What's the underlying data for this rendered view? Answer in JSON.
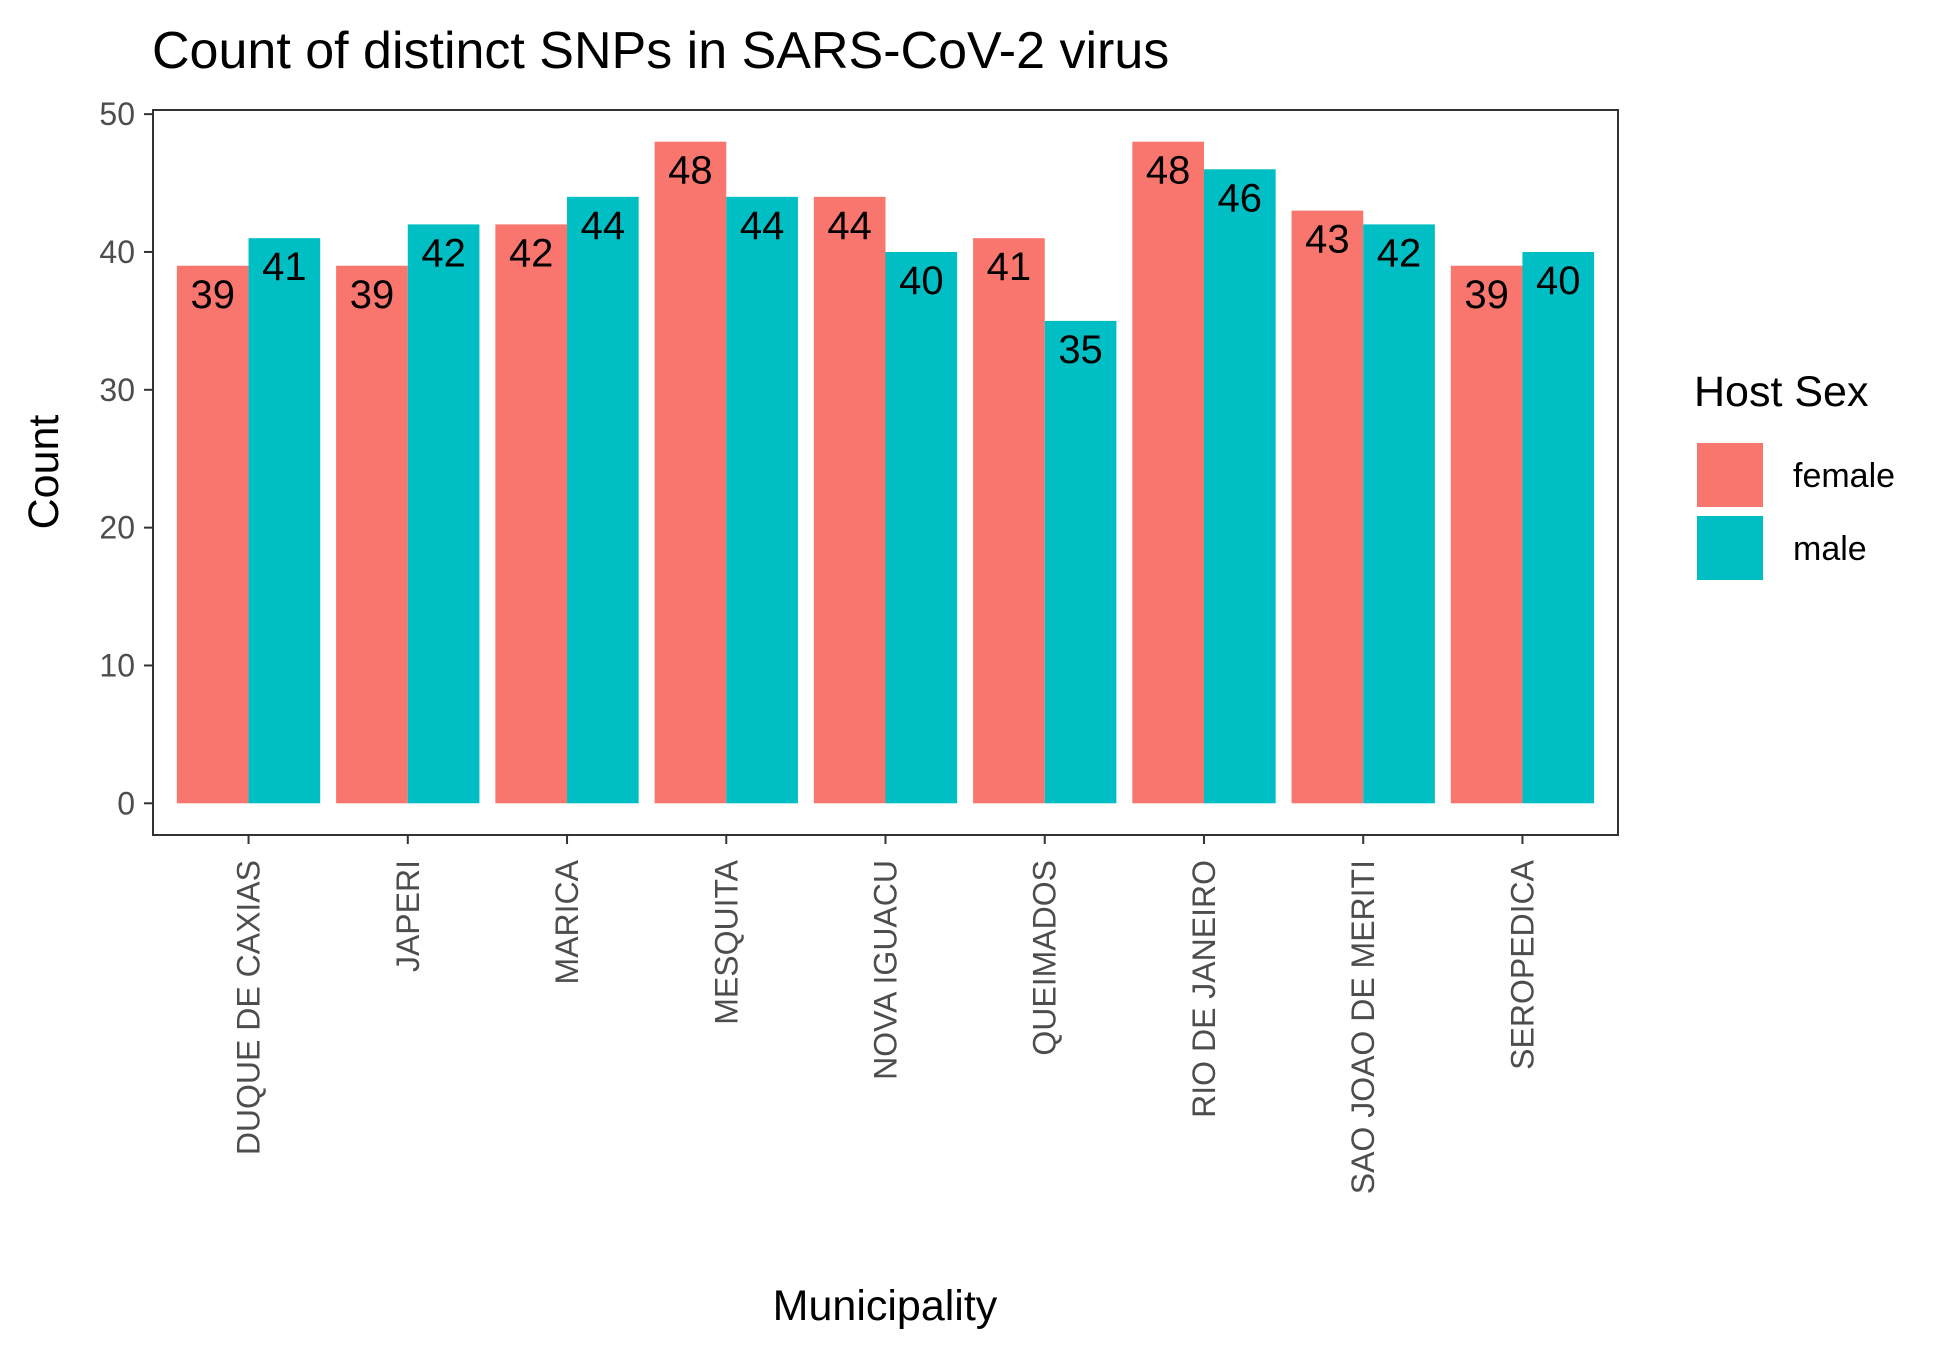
{
  "chart_data": {
    "type": "bar",
    "title": "Count of distinct SNPs in SARS-CoV-2 virus",
    "xlabel": "Municipality",
    "ylabel": "Count",
    "ylim": [
      -2.3,
      50.3
    ],
    "yticks": [
      0,
      10,
      20,
      30,
      40,
      50
    ],
    "grid": false,
    "legend": {
      "title": "Host Sex",
      "position": "right"
    },
    "categories": [
      "DUQUE DE CAXIAS",
      "JAPERI",
      "MARICA",
      "MESQUITA",
      "NOVA IGUACU",
      "QUEIMADOS",
      "RIO DE JANEIRO",
      "SAO JOAO DE MERITI",
      "SEROPEDICA"
    ],
    "series": [
      {
        "name": "female",
        "color": "#F8766D",
        "values": [
          39,
          39,
          42,
          48,
          44,
          41,
          48,
          43,
          39
        ]
      },
      {
        "name": "male",
        "color": "#00BFC4",
        "values": [
          41,
          42,
          44,
          44,
          40,
          35,
          46,
          42,
          40
        ]
      }
    ]
  }
}
